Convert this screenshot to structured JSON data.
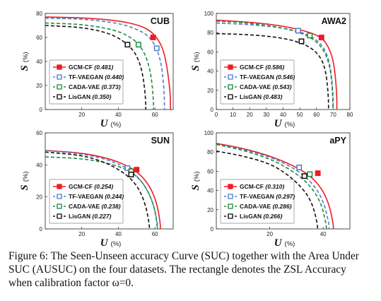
{
  "chart_data": [
    {
      "type": "line",
      "title": "CUB",
      "xlabel": "U",
      "xlabel_unit": "(%)",
      "ylabel": "S",
      "ylabel_unit": "(%)",
      "xlim": [
        0,
        70
      ],
      "ylim": [
        0,
        80
      ],
      "xticks": [
        "20",
        "40",
        "60"
      ],
      "yticks": [
        "0",
        "20",
        "40",
        "60",
        "80"
      ],
      "series": [
        {
          "name": "GCM-CF",
          "auc": "(0.481)",
          "color": "#ee1c24",
          "dash": "solid",
          "x": [
            0,
            20,
            40,
            52,
            58,
            62,
            65,
            67,
            68.5,
            68.5
          ],
          "y": [
            77,
            76.5,
            74,
            70,
            65,
            58,
            48,
            32,
            12,
            0
          ],
          "marker": [
            59,
            60
          ]
        },
        {
          "name": "TF-VAEGAN",
          "auc": "(0.440)",
          "color": "#4f7fc9",
          "dash": "dash",
          "x": [
            0,
            20,
            40,
            50,
            56,
            60,
            63,
            64.5,
            65.2,
            65.2
          ],
          "y": [
            76,
            75.5,
            72,
            67,
            62,
            54,
            42,
            26,
            10,
            0
          ],
          "marker": [
            61,
            51
          ]
        },
        {
          "name": "CADA-VAE",
          "auc": "(0.373)",
          "color": "#1e8c3e",
          "dash": "dash",
          "x": [
            0,
            20,
            36,
            45,
            51,
            55,
            57.5,
            58.7,
            59.2,
            59.2
          ],
          "y": [
            72,
            71,
            67,
            62,
            55,
            45,
            32,
            18,
            6,
            0
          ],
          "marker": [
            51,
            54
          ]
        },
        {
          "name": "LisGAN",
          "auc": "(0.350)",
          "color": "#111111",
          "dash": "dash",
          "x": [
            0,
            20,
            34,
            42,
            48,
            51.5,
            53.5,
            54.6,
            55,
            55
          ],
          "y": [
            70,
            68.5,
            64,
            58,
            50,
            40,
            28,
            14,
            5,
            0
          ],
          "marker": [
            45,
            54
          ]
        }
      ],
      "legend": "bottom-left"
    },
    {
      "type": "line",
      "title": "AWA2",
      "xlabel": "U",
      "xlabel_unit": "(%)",
      "ylabel": "S",
      "ylabel_unit": "(%)",
      "xlim": [
        0,
        80
      ],
      "ylim": [
        0,
        100
      ],
      "xticks": [
        "0",
        "10",
        "20",
        "30",
        "40",
        "50",
        "60",
        "70",
        "80"
      ],
      "yticks": [
        "0",
        "20",
        "40",
        "60",
        "80",
        "100"
      ],
      "series": [
        {
          "name": "GCM-CF",
          "auc": "(0.586)",
          "color": "#ee1c24",
          "dash": "solid",
          "x": [
            0,
            20,
            40,
            55,
            63,
            67,
            70,
            71.5,
            72.2,
            72.2
          ],
          "y": [
            93,
            91,
            87,
            81,
            75,
            66,
            52,
            32,
            12,
            0
          ],
          "marker": [
            63,
            75
          ]
        },
        {
          "name": "TF-VAEGAN",
          "auc": "(0.546)",
          "color": "#4f7fc9",
          "dash": "dash",
          "x": [
            0,
            20,
            40,
            52,
            60,
            65,
            68,
            69.4,
            70,
            70
          ],
          "y": [
            90,
            88.5,
            85,
            80,
            73,
            63,
            48,
            28,
            10,
            0
          ],
          "marker": [
            49,
            82
          ]
        },
        {
          "name": "CADA-VAE",
          "auc": "(0.543)",
          "color": "#1e8c3e",
          "dash": "dash",
          "x": [
            0,
            20,
            40,
            52,
            60,
            65,
            68,
            69.3,
            69.8,
            69.8
          ],
          "y": [
            92,
            90,
            85,
            79,
            71,
            60,
            45,
            26,
            9,
            0
          ],
          "marker": [
            56,
            77
          ]
        },
        {
          "name": "LisGAN",
          "auc": "(0.483)",
          "color": "#111111",
          "dash": "dash",
          "x": [
            0,
            20,
            38,
            50,
            58,
            63,
            65.5,
            66.7,
            67.2,
            67.2
          ],
          "y": [
            79,
            78,
            75,
            70,
            63,
            53,
            40,
            23,
            8,
            0
          ],
          "marker": [
            51,
            71
          ]
        }
      ],
      "legend": "bottom-left"
    },
    {
      "type": "line",
      "title": "SUN",
      "xlabel": "U",
      "xlabel_unit": "(%)",
      "ylabel": "S",
      "ylabel_unit": "(%)",
      "xlim": [
        0,
        70
      ],
      "ylim": [
        0,
        60
      ],
      "xticks": [
        "20",
        "40",
        "60"
      ],
      "yticks": [
        "0",
        "20",
        "40",
        "60"
      ],
      "series": [
        {
          "name": "GCM-CF",
          "auc": "(0.254)",
          "color": "#ee1c24",
          "dash": "solid",
          "x": [
            0,
            20,
            35,
            46,
            53,
            58,
            61,
            62.5,
            63,
            63
          ],
          "y": [
            49,
            47.5,
            44,
            39,
            33,
            25,
            16,
            7,
            2,
            0
          ],
          "marker": [
            50,
            37
          ]
        },
        {
          "name": "TF-VAEGAN",
          "auc": "(0.244)",
          "color": "#4f7fc9",
          "dash": "dash",
          "x": [
            0,
            20,
            35,
            45,
            52,
            56.5,
            59.5,
            61,
            61.5,
            61.5
          ],
          "y": [
            49,
            47,
            43,
            38,
            31,
            23,
            14,
            6,
            2,
            0
          ],
          "marker": [
            45,
            38
          ]
        },
        {
          "name": "CADA-VAE",
          "auc": "(0.238)",
          "color": "#1e8c3e",
          "dash": "dash",
          "x": [
            0,
            20,
            35,
            45,
            52,
            56.5,
            59.5,
            60.8,
            61.2,
            61.2
          ],
          "y": [
            45,
            44,
            41,
            37,
            31,
            23,
            14,
            6,
            2,
            0
          ],
          "marker": [
            47,
            36
          ]
        },
        {
          "name": "LisGAN",
          "auc": "(0.227)",
          "color": "#111111",
          "dash": "dash",
          "x": [
            0,
            20,
            32,
            42,
            49,
            53,
            55.5,
            56.6,
            57,
            57
          ],
          "y": [
            48,
            46,
            42,
            36,
            29,
            21,
            12,
            5,
            1,
            0
          ],
          "marker": [
            47,
            34
          ]
        }
      ],
      "legend": "bottom-left"
    },
    {
      "type": "line",
      "title": "aPY",
      "xlabel": "U",
      "xlabel_unit": "(%)",
      "ylabel": "S",
      "ylabel_unit": "(%)",
      "xlim": [
        0,
        50
      ],
      "ylim": [
        0,
        100
      ],
      "xticks": [
        "20",
        "40"
      ],
      "yticks": [
        "0",
        "20",
        "40",
        "60",
        "80",
        "100"
      ],
      "series": [
        {
          "name": "GCM-CF",
          "auc": "(0.310)",
          "color": "#ee1c24",
          "dash": "solid",
          "x": [
            0,
            10,
            20,
            28,
            35,
            39.5,
            42,
            43.3,
            43.8,
            43.8
          ],
          "y": [
            89,
            84,
            76,
            67,
            56,
            42,
            27,
            12,
            4,
            0
          ],
          "marker": [
            38,
            58
          ]
        },
        {
          "name": "TF-VAEGAN",
          "auc": "(0.297)",
          "color": "#4f7fc9",
          "dash": "dash",
          "x": [
            0,
            10,
            20,
            28,
            34,
            38,
            40.5,
            41.7,
            42.2,
            42.2
          ],
          "y": [
            88,
            83,
            75,
            65,
            53,
            40,
            25,
            11,
            3,
            0
          ],
          "marker": [
            31,
            64
          ]
        },
        {
          "name": "CADA-VAE",
          "auc": "(0.286)",
          "color": "#1e8c3e",
          "dash": "dash",
          "x": [
            0,
            10,
            20,
            27,
            33,
            37,
            39.5,
            40.7,
            41.2,
            41.2
          ],
          "y": [
            88,
            82,
            73,
            63,
            51,
            38,
            24,
            10,
            3,
            0
          ],
          "marker": [
            35,
            57
          ]
        },
        {
          "name": "LisGAN",
          "auc": "(0.266)",
          "color": "#111111",
          "dash": "dash",
          "x": [
            0,
            10,
            20,
            26,
            31,
            34.5,
            36.5,
            37.5,
            37.9,
            37.9
          ],
          "y": [
            81,
            76,
            68,
            58,
            46,
            34,
            21,
            9,
            3,
            0
          ],
          "marker": [
            33,
            55
          ]
        }
      ],
      "legend": "bottom-left"
    }
  ],
  "caption": "Figure 6: The Seen-Unseen accuracy Curve (SUC) together with the Area Under SUC (AUSUC) on the four datasets. The rectangle denotes the ZSL Accuracy when calibration factor ω=0."
}
